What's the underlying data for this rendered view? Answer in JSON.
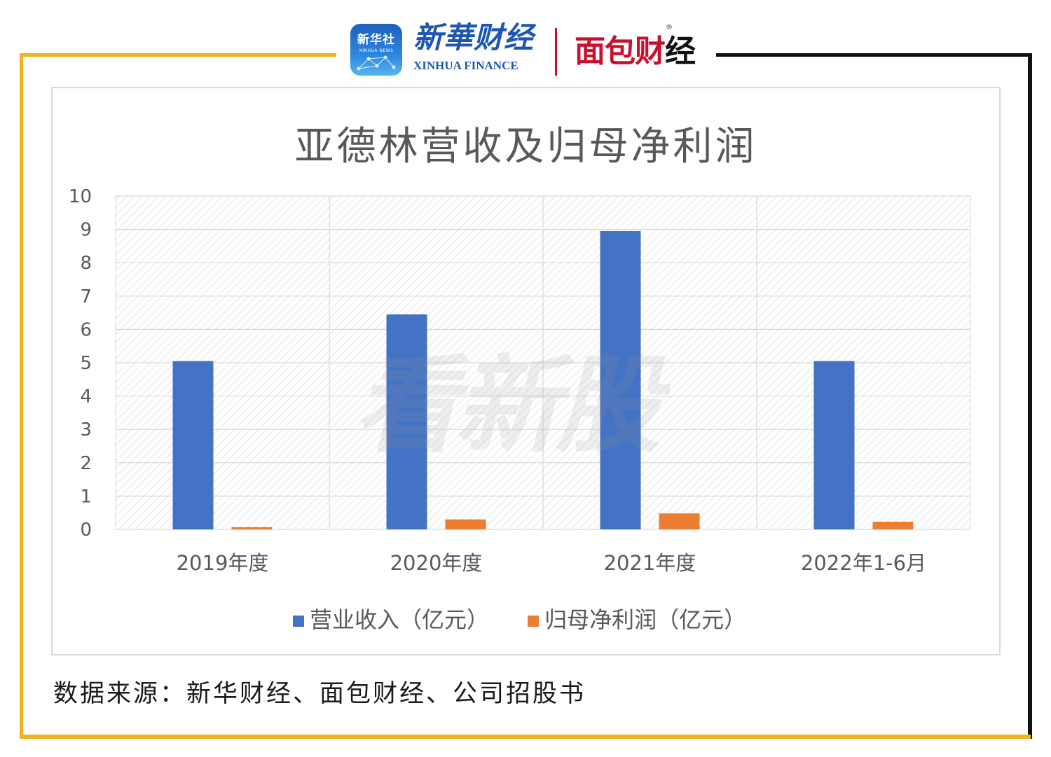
{
  "header": {
    "xinhua_badge_cn": "新华社",
    "xinhua_badge_en": "XINHUA NEWS",
    "xinhua_finance_cn": "新華财经",
    "xinhua_finance_en": "XINHUA FINANCE",
    "mianbao_logo_red": "面包财",
    "mianbao_logo_black": "经",
    "registered_mark": "®"
  },
  "watermark": "看新股",
  "source": "数据来源：新华财经、面包财经、公司招股书",
  "colors": {
    "frame_gold": "#f0b31c",
    "frame_black": "#111111",
    "revenue_bar": "#4472c4",
    "profit_bar": "#ed7d31",
    "mianbao_red": "#c8102e",
    "xinhua_blue": "#1e56b3"
  },
  "chart_data": {
    "type": "bar",
    "title": "亚德林营收及归母净利润",
    "categories": [
      "2019年度",
      "2020年度",
      "2021年度",
      "2022年1-6月"
    ],
    "series": [
      {
        "name": "营业收入（亿元）",
        "color": "#4472c4",
        "values": [
          5.05,
          6.45,
          8.95,
          5.05
        ]
      },
      {
        "name": "归母净利润（亿元）",
        "color": "#ed7d31",
        "values": [
          0.07,
          0.3,
          0.48,
          0.23
        ]
      }
    ],
    "ylim": [
      0,
      10
    ],
    "yticks": [
      "0",
      "1",
      "2",
      "3",
      "4",
      "5",
      "6",
      "7",
      "8",
      "9",
      "10"
    ],
    "grid": true,
    "legend_position": "bottom"
  }
}
